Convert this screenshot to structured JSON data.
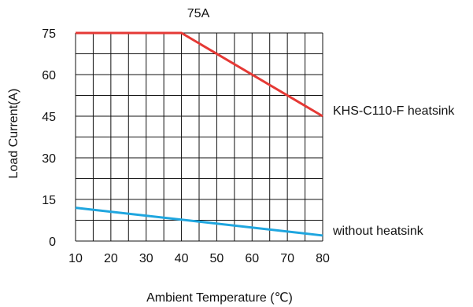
{
  "chart_data": {
    "type": "line",
    "title": "75A",
    "xlabel": "Ambient Temperature (℃)",
    "ylabel": "Load Current(A)",
    "xlim": [
      10,
      80
    ],
    "ylim": [
      0,
      75
    ],
    "x_ticks": [
      10,
      20,
      30,
      40,
      50,
      60,
      70,
      80
    ],
    "y_ticks": [
      0,
      15,
      30,
      45,
      60,
      75
    ],
    "grid": true,
    "series": [
      {
        "name": "KHS-C110-F heatsink",
        "color": "#e53935",
        "x": [
          10,
          40,
          80
        ],
        "y": [
          75,
          75,
          45
        ]
      },
      {
        "name": "without heatsink",
        "color": "#1fa6df",
        "x": [
          10,
          80
        ],
        "y": [
          12,
          2
        ]
      }
    ]
  }
}
